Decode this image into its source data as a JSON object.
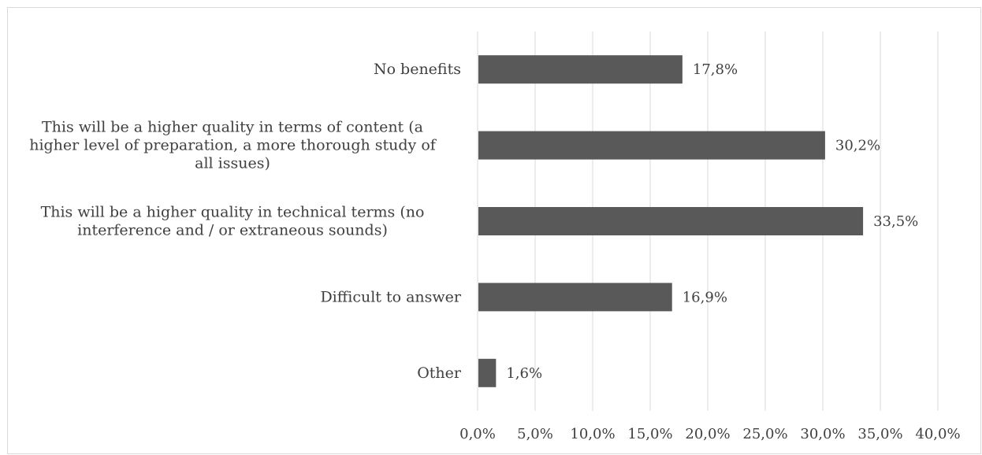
{
  "chart_data": {
    "type": "bar",
    "orientation": "horizontal",
    "categories": [
      [
        "No benefits"
      ],
      [
        "This will be a higher quality in terms of content (a",
        "higher level of preparation, a more thorough study of",
        "all issues)"
      ],
      [
        "This will be a higher quality in technical terms (no",
        "interference and / or extraneous sounds)"
      ],
      [
        "Difficult to answer"
      ],
      [
        "Other"
      ]
    ],
    "values": [
      17.8,
      30.2,
      33.5,
      16.9,
      1.6
    ],
    "data_labels": [
      "17,8%",
      "30,2%",
      "33,5%",
      "16,9%",
      "1,6%"
    ],
    "xlim": [
      0,
      40
    ],
    "x_ticks": [
      0,
      5,
      10,
      15,
      20,
      25,
      30,
      35,
      40
    ],
    "x_tick_labels": [
      "0,0%",
      "5,0%",
      "10,0%",
      "15,0%",
      "20,0%",
      "25,0%",
      "30,0%",
      "35,0%",
      "40,0%"
    ],
    "grid": "vertical",
    "legend": "none",
    "bar_color": "#595959",
    "grid_color": "#d9d9d9",
    "text_color": "#404040"
  }
}
